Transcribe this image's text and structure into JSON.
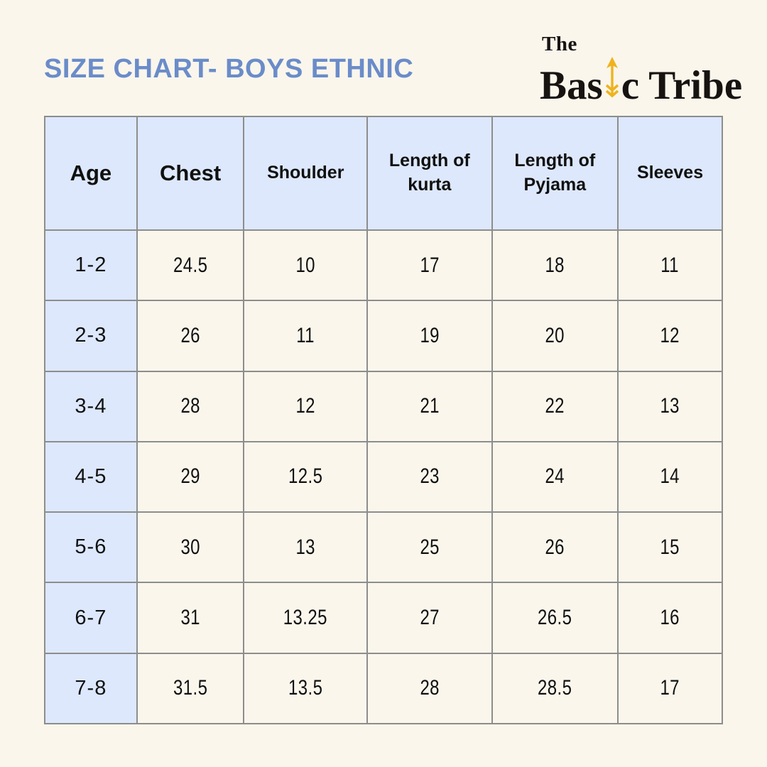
{
  "page": {
    "background_color": "#faf6ec"
  },
  "header": {
    "title": "SIZE CHART- BOYS ETHNIC",
    "title_color": "#6a8cc9"
  },
  "logo": {
    "line1": "The",
    "word_part1": "Bas",
    "word_part2": "c Tribe",
    "arrow_icon": "up-arrow-icon",
    "arrow_color": "#efb31d",
    "text_color": "#171310"
  },
  "table": {
    "header_bg_color": "#dde8fc",
    "border_color": "#8d8d8d",
    "columns": [
      "Age",
      "Chest",
      "Shoulder",
      "Length of kurta",
      "Length of Pyjama",
      "Sleeves"
    ],
    "rows": [
      [
        "1-2",
        "24.5",
        "10",
        "17",
        "18",
        "11"
      ],
      [
        "2-3",
        "26",
        "11",
        "19",
        "20",
        "12"
      ],
      [
        "3-4",
        "28",
        "12",
        "21",
        "22",
        "13"
      ],
      [
        "4-5",
        "29",
        "12.5",
        "23",
        "24",
        "14"
      ],
      [
        "5-6",
        "30",
        "13",
        "25",
        "26",
        "15"
      ],
      [
        "6-7",
        "31",
        "13.25",
        "27",
        "26.5",
        "16"
      ],
      [
        "7-8",
        "31.5",
        "13.5",
        "28",
        "28.5",
        "17"
      ]
    ]
  }
}
